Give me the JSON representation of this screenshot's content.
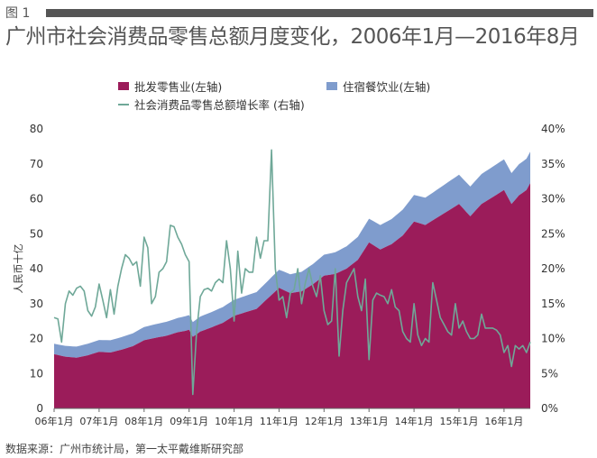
{
  "figure_label": "图 1",
  "title": "广州市社会消费品零售总额月度变化，2006年1月—2016年8月",
  "source": "数据来源：广州市统计局，第一太平戴维斯研究部",
  "chart_data": {
    "type": "area",
    "ylabel_left": "人民币十亿",
    "ylabel_right": "",
    "left_ylim": [
      0,
      80
    ],
    "right_ylim": [
      0,
      0.4
    ],
    "left_ticks": [
      "0",
      "10",
      "20",
      "30",
      "40",
      "50",
      "60",
      "70",
      "80"
    ],
    "right_ticks": [
      "0%",
      "5%",
      "10%",
      "15%",
      "20%",
      "25%",
      "30%",
      "35%",
      "40%"
    ],
    "x_tick_labels": [
      "06年1月",
      "07年1月",
      "08年1月",
      "09年1月",
      "10年1月",
      "11年1月",
      "12年1月",
      "13年1月",
      "14年1月",
      "15年1月",
      "16年1月"
    ],
    "x_range": [
      "2006-01",
      "2016-08"
    ],
    "legend": [
      {
        "label": "批发零售业(左轴)",
        "color": "#9b1c5a",
        "kind": "area"
      },
      {
        "label": "住宿餐饮业(左轴)",
        "color": "#7f9ccd",
        "kind": "area"
      },
      {
        "label": "社会消费品零售总额增长率 (右轴)",
        "color": "#6fa898",
        "kind": "line"
      }
    ],
    "series": [
      {
        "name": "批发零售业(左轴)",
        "axis": "left",
        "points": [
          [
            "2006-01",
            15.5
          ],
          [
            "2006-04",
            14.8
          ],
          [
            "2006-07",
            14.5
          ],
          [
            "2006-10",
            15.2
          ],
          [
            "2007-01",
            16.2
          ],
          [
            "2007-04",
            16.0
          ],
          [
            "2007-07",
            16.8
          ],
          [
            "2007-10",
            17.8
          ],
          [
            "2008-01",
            19.5
          ],
          [
            "2008-04",
            20.2
          ],
          [
            "2008-07",
            20.8
          ],
          [
            "2008-10",
            21.8
          ],
          [
            "2008-12",
            22.2
          ],
          [
            "2009-01",
            22.5
          ],
          [
            "2009-02",
            20.5
          ],
          [
            "2009-04",
            22.0
          ],
          [
            "2009-07",
            23.2
          ],
          [
            "2009-10",
            24.5
          ],
          [
            "2010-01",
            26.5
          ],
          [
            "2010-04",
            27.5
          ],
          [
            "2010-07",
            28.5
          ],
          [
            "2010-10",
            31.5
          ],
          [
            "2011-01",
            34.5
          ],
          [
            "2011-04",
            33.0
          ],
          [
            "2011-07",
            33.5
          ],
          [
            "2011-10",
            35.5
          ],
          [
            "2012-01",
            38.0
          ],
          [
            "2012-04",
            38.5
          ],
          [
            "2012-07",
            40.0
          ],
          [
            "2012-10",
            42.5
          ],
          [
            "2013-01",
            47.5
          ],
          [
            "2013-04",
            45.5
          ],
          [
            "2013-07",
            47.0
          ],
          [
            "2013-10",
            49.5
          ],
          [
            "2014-01",
            53.5
          ],
          [
            "2014-04",
            52.5
          ],
          [
            "2014-07",
            54.5
          ],
          [
            "2014-10",
            56.5
          ],
          [
            "2015-01",
            58.5
          ],
          [
            "2015-04",
            55.0
          ],
          [
            "2015-07",
            58.5
          ],
          [
            "2015-10",
            60.5
          ],
          [
            "2016-01",
            62.5
          ],
          [
            "2016-03",
            58.5
          ],
          [
            "2016-05",
            61.0
          ],
          [
            "2016-07",
            62.5
          ],
          [
            "2016-08",
            64.5
          ]
        ]
      },
      {
        "name": "住宿餐饮业(左轴)",
        "axis": "left",
        "points": [
          [
            "2006-01",
            3.0
          ],
          [
            "2006-07",
            3.2
          ],
          [
            "2007-01",
            3.4
          ],
          [
            "2007-07",
            3.6
          ],
          [
            "2008-01",
            3.8
          ],
          [
            "2008-07",
            4.0
          ],
          [
            "2009-01",
            4.2
          ],
          [
            "2009-07",
            4.4
          ],
          [
            "2010-01",
            4.6
          ],
          [
            "2010-07",
            4.8
          ],
          [
            "2011-01",
            5.2
          ],
          [
            "2011-07",
            5.6
          ],
          [
            "2012-01",
            6.0
          ],
          [
            "2012-07",
            6.4
          ],
          [
            "2013-01",
            6.8
          ],
          [
            "2013-07",
            7.2
          ],
          [
            "2014-01",
            7.6
          ],
          [
            "2014-07",
            8.0
          ],
          [
            "2015-01",
            8.4
          ],
          [
            "2015-07",
            8.6
          ],
          [
            "2016-01",
            8.8
          ],
          [
            "2016-08",
            9.0
          ]
        ]
      },
      {
        "name": "社会消费品零售总额增长率 (右轴)",
        "axis": "right",
        "points": [
          [
            "2006-01",
            0.13
          ],
          [
            "2006-02",
            0.128
          ],
          [
            "2006-03",
            0.095
          ],
          [
            "2006-04",
            0.15
          ],
          [
            "2006-05",
            0.168
          ],
          [
            "2006-06",
            0.162
          ],
          [
            "2006-07",
            0.172
          ],
          [
            "2006-08",
            0.175
          ],
          [
            "2006-09",
            0.168
          ],
          [
            "2006-10",
            0.14
          ],
          [
            "2006-11",
            0.132
          ],
          [
            "2006-12",
            0.145
          ],
          [
            "2007-01",
            0.178
          ],
          [
            "2007-02",
            0.155
          ],
          [
            "2007-03",
            0.13
          ],
          [
            "2007-04",
            0.17
          ],
          [
            "2007-05",
            0.135
          ],
          [
            "2007-06",
            0.175
          ],
          [
            "2007-07",
            0.2
          ],
          [
            "2007-08",
            0.22
          ],
          [
            "2007-09",
            0.215
          ],
          [
            "2007-10",
            0.205
          ],
          [
            "2007-11",
            0.21
          ],
          [
            "2007-12",
            0.175
          ],
          [
            "2008-01",
            0.245
          ],
          [
            "2008-02",
            0.23
          ],
          [
            "2008-03",
            0.15
          ],
          [
            "2008-04",
            0.16
          ],
          [
            "2008-05",
            0.195
          ],
          [
            "2008-06",
            0.2
          ],
          [
            "2008-07",
            0.21
          ],
          [
            "2008-08",
            0.262
          ],
          [
            "2008-09",
            0.26
          ],
          [
            "2008-10",
            0.245
          ],
          [
            "2008-11",
            0.235
          ],
          [
            "2008-12",
            0.22
          ],
          [
            "2009-01",
            0.21
          ],
          [
            "2009-02",
            0.02
          ],
          [
            "2009-03",
            0.11
          ],
          [
            "2009-04",
            0.16
          ],
          [
            "2009-05",
            0.17
          ],
          [
            "2009-06",
            0.172
          ],
          [
            "2009-07",
            0.168
          ],
          [
            "2009-08",
            0.18
          ],
          [
            "2009-09",
            0.185
          ],
          [
            "2009-10",
            0.18
          ],
          [
            "2009-11",
            0.24
          ],
          [
            "2009-12",
            0.2
          ],
          [
            "2010-01",
            0.125
          ],
          [
            "2010-02",
            0.225
          ],
          [
            "2010-03",
            0.165
          ],
          [
            "2010-04",
            0.2
          ],
          [
            "2010-05",
            0.195
          ],
          [
            "2010-06",
            0.195
          ],
          [
            "2010-07",
            0.245
          ],
          [
            "2010-08",
            0.215
          ],
          [
            "2010-09",
            0.24
          ],
          [
            "2010-10",
            0.24
          ],
          [
            "2010-11",
            0.37
          ],
          [
            "2010-12",
            0.2
          ],
          [
            "2011-01",
            0.155
          ],
          [
            "2011-02",
            0.16
          ],
          [
            "2011-03",
            0.13
          ],
          [
            "2011-04",
            0.165
          ],
          [
            "2011-05",
            0.17
          ],
          [
            "2011-06",
            0.2
          ],
          [
            "2011-07",
            0.15
          ],
          [
            "2011-08",
            0.18
          ],
          [
            "2011-09",
            0.2
          ],
          [
            "2011-10",
            0.175
          ],
          [
            "2011-11",
            0.16
          ],
          [
            "2011-12",
            0.19
          ],
          [
            "2012-01",
            0.14
          ],
          [
            "2012-02",
            0.12
          ],
          [
            "2012-03",
            0.125
          ],
          [
            "2012-04",
            0.2
          ],
          [
            "2012-05",
            0.075
          ],
          [
            "2012-06",
            0.14
          ],
          [
            "2012-07",
            0.18
          ],
          [
            "2012-08",
            0.19
          ],
          [
            "2012-09",
            0.2
          ],
          [
            "2012-10",
            0.16
          ],
          [
            "2012-11",
            0.14
          ],
          [
            "2012-12",
            0.185
          ],
          [
            "2013-01",
            0.07
          ],
          [
            "2013-02",
            0.155
          ],
          [
            "2013-03",
            0.165
          ],
          [
            "2013-04",
            0.162
          ],
          [
            "2013-05",
            0.16
          ],
          [
            "2013-06",
            0.15
          ],
          [
            "2013-07",
            0.17
          ],
          [
            "2013-08",
            0.145
          ],
          [
            "2013-09",
            0.14
          ],
          [
            "2013-10",
            0.11
          ],
          [
            "2013-11",
            0.1
          ],
          [
            "2013-12",
            0.095
          ],
          [
            "2014-01",
            0.15
          ],
          [
            "2014-02",
            0.105
          ],
          [
            "2014-03",
            0.09
          ],
          [
            "2014-04",
            0.1
          ],
          [
            "2014-05",
            0.095
          ],
          [
            "2014-06",
            0.18
          ],
          [
            "2014-07",
            0.155
          ],
          [
            "2014-08",
            0.13
          ],
          [
            "2014-09",
            0.12
          ],
          [
            "2014-10",
            0.11
          ],
          [
            "2014-11",
            0.105
          ],
          [
            "2014-12",
            0.15
          ],
          [
            "2015-01",
            0.115
          ],
          [
            "2015-02",
            0.125
          ],
          [
            "2015-03",
            0.11
          ],
          [
            "2015-04",
            0.1
          ],
          [
            "2015-05",
            0.1
          ],
          [
            "2015-06",
            0.105
          ],
          [
            "2015-07",
            0.135
          ],
          [
            "2015-08",
            0.115
          ],
          [
            "2015-09",
            0.115
          ],
          [
            "2015-10",
            0.115
          ],
          [
            "2015-11",
            0.112
          ],
          [
            "2015-12",
            0.105
          ],
          [
            "2016-01",
            0.08
          ],
          [
            "2016-02",
            0.09
          ],
          [
            "2016-03",
            0.06
          ],
          [
            "2016-04",
            0.09
          ],
          [
            "2016-05",
            0.085
          ],
          [
            "2016-06",
            0.09
          ],
          [
            "2016-07",
            0.08
          ],
          [
            "2016-08",
            0.095
          ]
        ]
      }
    ]
  }
}
